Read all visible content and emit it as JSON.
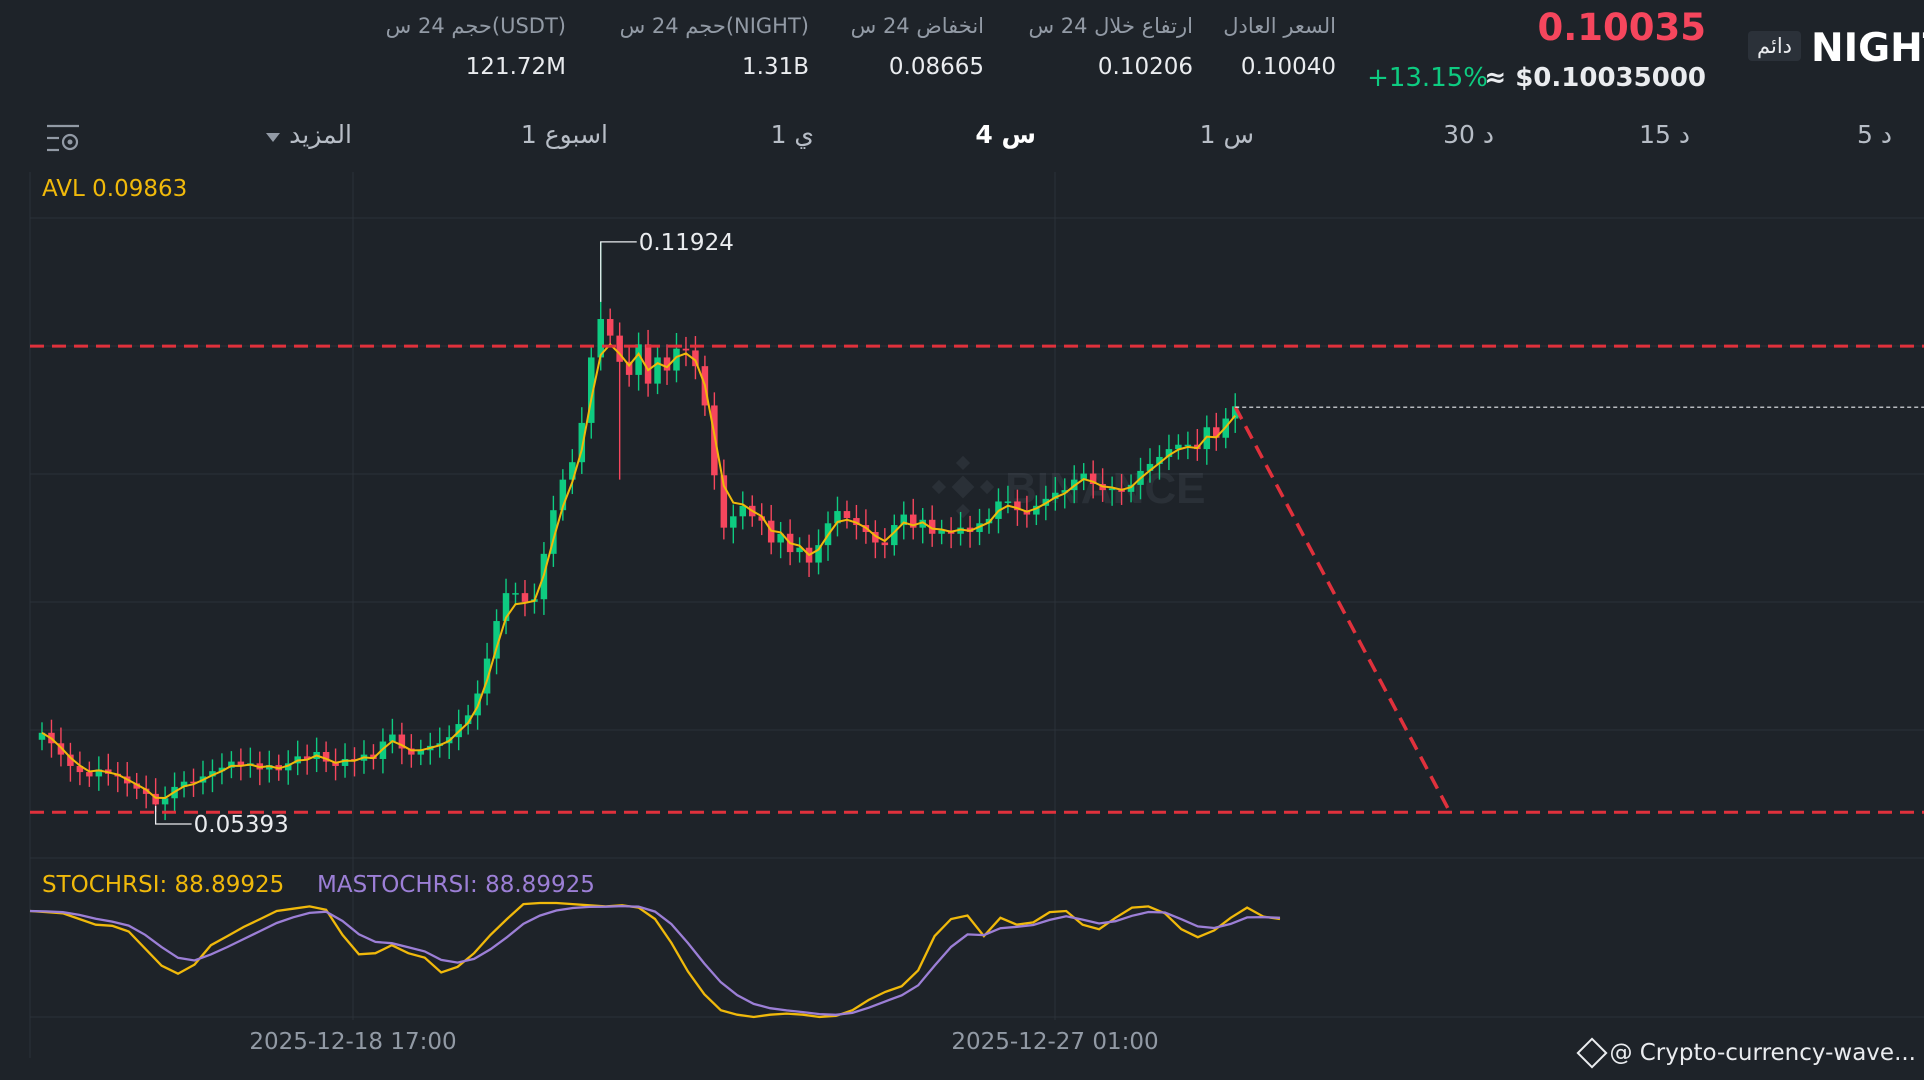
{
  "header": {
    "symbol": "NIGHT",
    "tag": "دائم",
    "price": "0.10035",
    "change": "+13.15%",
    "usd_price": "≈ $0.10035000",
    "stats": [
      {
        "label": "السعر العادل",
        "value": "0.10040"
      },
      {
        "label": "ارتفاع خلال 24 س",
        "value": "0.10206"
      },
      {
        "label": "انخفاض 24 س",
        "value": "0.08665"
      },
      {
        "label": "حجم 24 س(NIGHT)",
        "value": "1.31B"
      },
      {
        "label": "حجم 24 س(USDT)",
        "value": "121.72M"
      }
    ]
  },
  "timeframes": [
    {
      "label": "5 د",
      "active": false
    },
    {
      "label": "15 د",
      "active": false
    },
    {
      "label": "30 د",
      "active": false
    },
    {
      "label": "1 س",
      "active": false
    },
    {
      "label": "4 س",
      "active": true
    },
    {
      "label": "1 ي",
      "active": false
    },
    {
      "label": "1 اسبوع",
      "active": false
    },
    {
      "label": "المزيد",
      "active": false
    }
  ],
  "indicators": {
    "avl": "AVL 0.09863",
    "stochrsi": "STOCHRSI: 88.89925",
    "mastochrsi": "MASTOCHRSI: 88.89925"
  },
  "chart_data": {
    "type": "candlestick",
    "high_label": "0.11924",
    "low_label": "0.05393",
    "x_ticks": [
      "2025-12-18 17:00",
      "2025-12-27 01:00"
    ],
    "resistance_level": 0.1073,
    "support_level": 0.0539,
    "last_price": 0.10035,
    "avl": 0.09863,
    "closes": [
      0.063,
      0.0618,
      0.0605,
      0.0592,
      0.0585,
      0.058,
      0.0588,
      0.0583,
      0.058,
      0.0572,
      0.0566,
      0.056,
      0.0548,
      0.0555,
      0.0568,
      0.0574,
      0.0573,
      0.058,
      0.0586,
      0.059,
      0.0597,
      0.0592,
      0.0595,
      0.0588,
      0.0593,
      0.0587,
      0.0595,
      0.0603,
      0.06,
      0.0608,
      0.0597,
      0.0592,
      0.06,
      0.0598,
      0.0605,
      0.06,
      0.062,
      0.0628,
      0.0612,
      0.0605,
      0.061,
      0.0615,
      0.0618,
      0.0625,
      0.064,
      0.065,
      0.0675,
      0.0715,
      0.0758,
      0.079,
      0.079,
      0.078,
      0.0783,
      0.0835,
      0.0885,
      0.092,
      0.094,
      0.0985,
      0.106,
      0.1104,
      0.1085,
      0.1055,
      0.104,
      0.1075,
      0.103,
      0.106,
      0.1045,
      0.107,
      0.1068,
      0.105,
      0.1005,
      0.0925,
      0.0865,
      0.0878,
      0.089,
      0.0878,
      0.0873,
      0.0848,
      0.0858,
      0.0837,
      0.0842,
      0.0825,
      0.0845,
      0.087,
      0.0884,
      0.0876,
      0.0868,
      0.086,
      0.0848,
      0.0845,
      0.0868,
      0.088,
      0.0865,
      0.0874,
      0.0858,
      0.0862,
      0.0858,
      0.0865,
      0.086,
      0.087,
      0.0875,
      0.0895,
      0.0895,
      0.0885,
      0.088,
      0.089,
      0.0898,
      0.0905,
      0.0908,
      0.092,
      0.0927,
      0.0915,
      0.0908,
      0.091,
      0.0906,
      0.0914,
      0.093,
      0.0938,
      0.0946,
      0.0955,
      0.096,
      0.096,
      0.0955,
      0.098,
      0.0968,
      0.099,
      0.1004
    ],
    "stoch_k": [
      0.93,
      0.92,
      0.91,
      0.86,
      0.81,
      0.8,
      0.75,
      0.6,
      0.45,
      0.38,
      0.46,
      0.63,
      0.71,
      0.79,
      0.86,
      0.93,
      0.95,
      0.97,
      0.94,
      0.72,
      0.55,
      0.56,
      0.63,
      0.56,
      0.52,
      0.39,
      0.44,
      0.56,
      0.72,
      0.86,
      0.99,
      1.0,
      1.0,
      0.99,
      0.98,
      0.97,
      0.98,
      0.96,
      0.86,
      0.65,
      0.4,
      0.2,
      0.06,
      0.02,
      0.0,
      0.02,
      0.03,
      0.02,
      0.0,
      0.01,
      0.06,
      0.15,
      0.22,
      0.27,
      0.41,
      0.71,
      0.86,
      0.89,
      0.71,
      0.87,
      0.81,
      0.83,
      0.92,
      0.93,
      0.81,
      0.77,
      0.87,
      0.96,
      0.97,
      0.91,
      0.77,
      0.7,
      0.76,
      0.87,
      0.96,
      0.88,
      0.86
    ]
  },
  "watermark": "BINANCE",
  "footer": "@ Crypto-currency-wave..."
}
